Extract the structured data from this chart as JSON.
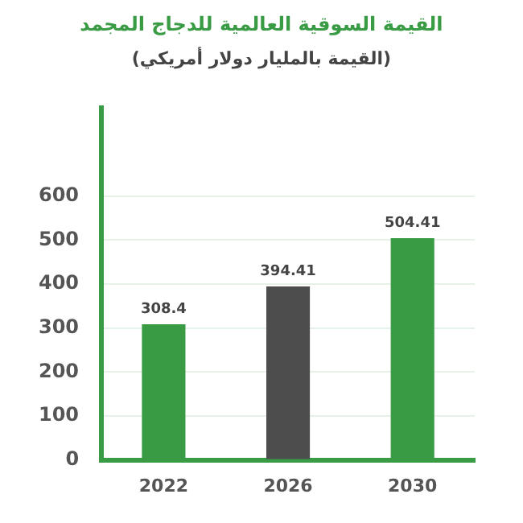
{
  "chart_data": {
    "type": "bar",
    "title": "القيمة السوقية العالمية للدجاج المجمد",
    "subtitle": "(القيمة بالمليار دولار أمريكي)",
    "categories": [
      "2022",
      "2026",
      "2030"
    ],
    "values": [
      308.4,
      394.41,
      504.41
    ],
    "colors": [
      "#3a9b45",
      "#4d4d4d",
      "#3a9b45"
    ],
    "ylim": [
      0,
      800
    ],
    "yticks": [
      0,
      100,
      200,
      300,
      400,
      500,
      600
    ],
    "grid": "y",
    "data_labels": true,
    "legend": false
  }
}
